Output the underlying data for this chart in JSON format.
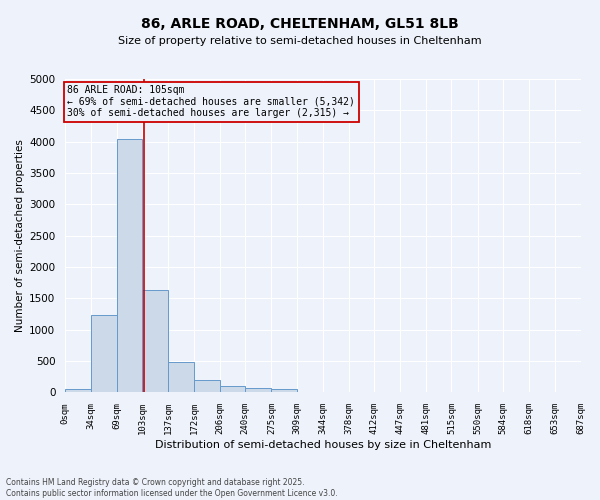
{
  "title": "86, ARLE ROAD, CHELTENHAM, GL51 8LB",
  "subtitle": "Size of property relative to semi-detached houses in Cheltenham",
  "xlabel": "Distribution of semi-detached houses by size in Cheltenham",
  "ylabel": "Number of semi-detached properties",
  "footer_line1": "Contains HM Land Registry data © Crown copyright and database right 2025.",
  "footer_line2": "Contains public sector information licensed under the Open Government Licence v3.0.",
  "annotation_title": "86 ARLE ROAD: 105sqm",
  "annotation_line1": "← 69% of semi-detached houses are smaller (5,342)",
  "annotation_line2": "30% of semi-detached houses are larger (2,315) →",
  "subject_value": 105,
  "bar_edges": [
    0,
    34,
    69,
    103,
    137,
    172,
    206,
    240,
    275,
    309,
    344,
    378,
    412,
    447,
    481,
    515,
    550,
    584,
    618,
    653,
    687
  ],
  "bar_heights": [
    50,
    1230,
    4050,
    1630,
    480,
    195,
    110,
    70,
    55,
    0,
    0,
    0,
    0,
    0,
    0,
    0,
    0,
    0,
    0,
    0
  ],
  "bar_color": "#ccd9e8",
  "bar_edge_color": "#6699cc",
  "vline_color": "#cc0000",
  "annotation_box_color": "#cc0000",
  "background_color": "#eef2fa",
  "grid_color": "#ffffff",
  "ylim": [
    0,
    5000
  ],
  "yticks": [
    0,
    500,
    1000,
    1500,
    2000,
    2500,
    3000,
    3500,
    4000,
    4500,
    5000
  ],
  "tick_labels": [
    "0sqm",
    "34sqm",
    "69sqm",
    "103sqm",
    "137sqm",
    "172sqm",
    "206sqm",
    "240sqm",
    "275sqm",
    "309sqm",
    "344sqm",
    "378sqm",
    "412sqm",
    "447sqm",
    "481sqm",
    "515sqm",
    "550sqm",
    "584sqm",
    "618sqm",
    "653sqm",
    "687sqm"
  ],
  "title_fontsize": 10,
  "subtitle_fontsize": 8,
  "xlabel_fontsize": 8,
  "ylabel_fontsize": 7.5,
  "tick_fontsize": 6.5,
  "ytick_fontsize": 7.5,
  "footer_fontsize": 5.5,
  "annotation_fontsize": 7
}
